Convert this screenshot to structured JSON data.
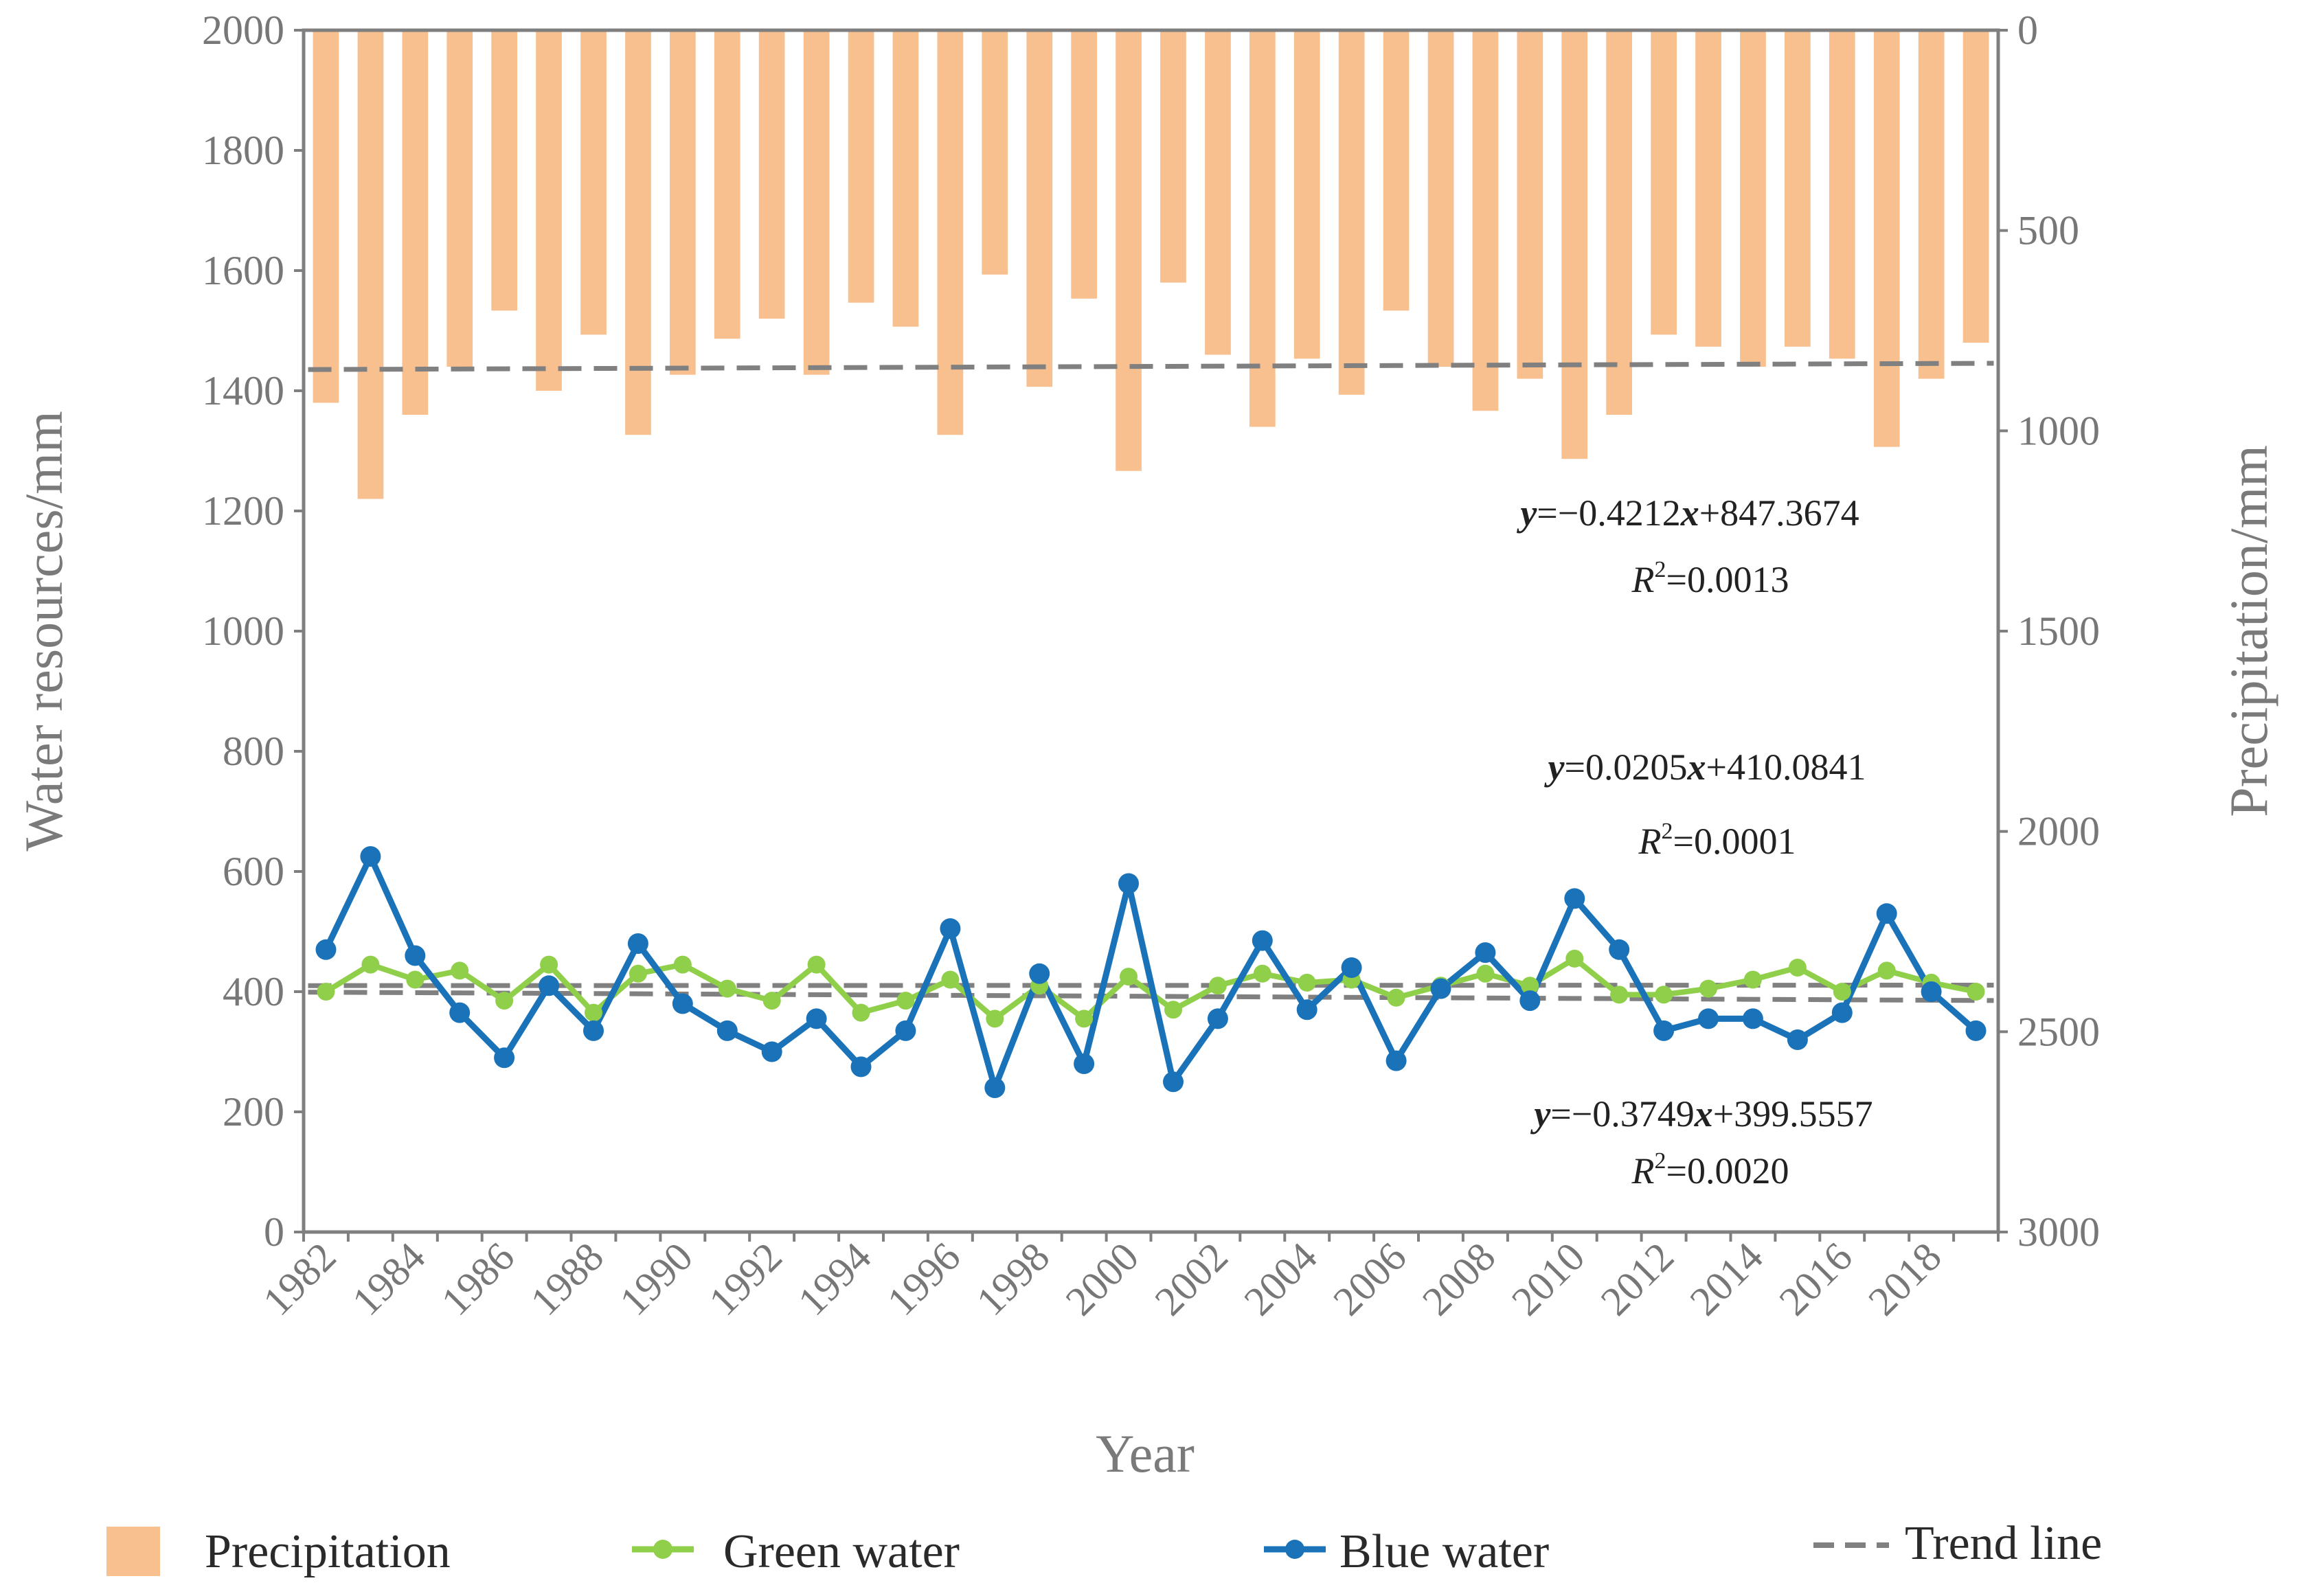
{
  "chart_data": {
    "type": "bar+line",
    "title": "",
    "xlabel": "Year",
    "ylabel_left": "Water resources/mm",
    "ylabel_right": "Precipitation/mm",
    "ylim_left": [
      0,
      2000
    ],
    "ylim_right": [
      0,
      3000
    ],
    "right_axis_inverted": true,
    "left_ticks": [
      "0",
      "200",
      "400",
      "600",
      "800",
      "1000",
      "1200",
      "1400",
      "1600",
      "1800",
      "2000"
    ],
    "right_ticks": [
      "0",
      "500",
      "1000",
      "1500",
      "2000",
      "2500",
      "3000"
    ],
    "x_tick_labels": [
      "1982",
      "1984",
      "1986",
      "1988",
      "1990",
      "1992",
      "1994",
      "1996",
      "1998",
      "2000",
      "2002",
      "2004",
      "2006",
      "2008",
      "2010",
      "2012",
      "2014",
      "2016",
      "2018"
    ],
    "years": [
      1982,
      1983,
      1984,
      1985,
      1986,
      1987,
      1988,
      1989,
      1990,
      1991,
      1992,
      1993,
      1994,
      1995,
      1996,
      1997,
      1998,
      1999,
      2000,
      2001,
      2002,
      2003,
      2004,
      2005,
      2006,
      2007,
      2008,
      2009,
      2010,
      2011,
      2012,
      2013,
      2014,
      2015,
      2016,
      2017,
      2018,
      2019
    ],
    "series": [
      {
        "name": "Precipitation",
        "axis": "right",
        "kind": "bar",
        "color": "#f8bf8f",
        "values": [
          930,
          1170,
          960,
          840,
          700,
          900,
          760,
          1010,
          860,
          770,
          720,
          860,
          680,
          740,
          1010,
          610,
          890,
          670,
          1100,
          630,
          810,
          990,
          820,
          910,
          700,
          840,
          950,
          870,
          1070,
          960,
          760,
          790,
          840,
          790,
          820,
          1040,
          870,
          780
        ]
      },
      {
        "name": "Green water",
        "axis": "left",
        "kind": "line",
        "color": "#8fcf4a",
        "values": [
          400,
          445,
          420,
          435,
          385,
          445,
          365,
          430,
          445,
          405,
          385,
          445,
          365,
          385,
          420,
          355,
          410,
          355,
          425,
          370,
          410,
          430,
          415,
          420,
          390,
          410,
          430,
          410,
          455,
          395,
          395,
          405,
          420,
          440,
          400,
          435,
          415,
          400
        ]
      },
      {
        "name": "Blue water",
        "axis": "left",
        "kind": "line",
        "color": "#1a72b8",
        "values": [
          470,
          625,
          460,
          365,
          290,
          410,
          335,
          480,
          380,
          335,
          300,
          355,
          275,
          335,
          505,
          240,
          430,
          280,
          580,
          250,
          355,
          485,
          370,
          440,
          285,
          405,
          465,
          385,
          555,
          470,
          335,
          355,
          355,
          320,
          365,
          530,
          400,
          335
        ]
      },
      {
        "name": "Trend line",
        "kind": "dashed",
        "color": "#808080",
        "lines": [
          {
            "of": "Precipitation",
            "slope": -0.4212,
            "intercept": 847.3674
          },
          {
            "of": "Green water",
            "slope": 0.0205,
            "intercept": 410.0841
          },
          {
            "of": "Blue water",
            "slope": -0.3749,
            "intercept": 399.5557
          }
        ]
      }
    ],
    "annotations": [
      {
        "y": "y",
        "eq": "=−0.4212",
        "x": "x",
        "rest": "+847.3674",
        "r2_label": "R",
        "r2_sup": "2",
        "r2_value": "=0.0013"
      },
      {
        "y": "y",
        "eq": "=0.0205",
        "x": "x",
        "rest": "+410.0841",
        "r2_label": "R",
        "r2_sup": "2",
        "r2_value": "=0.0001"
      },
      {
        "y": "y",
        "eq": "=−0.3749",
        "x": "x",
        "rest": "+399.5557",
        "r2_label": "R",
        "r2_sup": "2",
        "r2_value": "=0.0020"
      }
    ],
    "legend": {
      "position": "bottom",
      "entries": [
        "Precipitation",
        "Green water",
        "Blue water",
        "Trend line"
      ]
    }
  }
}
